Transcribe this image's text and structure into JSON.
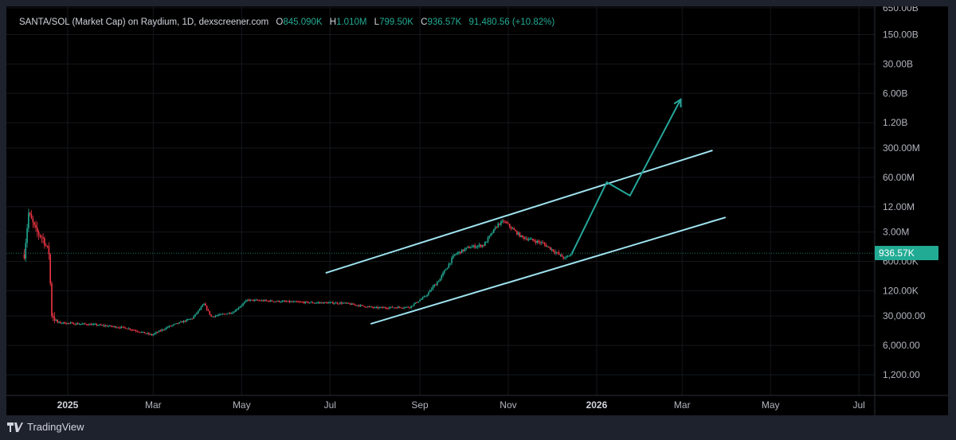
{
  "legend": {
    "title": "SANTA/SOL (Market Cap) on Raydium, 1D, dexscreener.com",
    "open_label": "O",
    "open": "845.090K",
    "high_label": "H",
    "high": "1.010M",
    "low_label": "L",
    "low": "799.50K",
    "close_label": "C",
    "close": "936.57K",
    "change": "91,480.56 (+10.82%)"
  },
  "branding": {
    "name": "TradingView",
    "icon": "tradingview-logo-icon"
  },
  "colors": {
    "up": "#22ab94",
    "down": "#f23645",
    "channel": "#9fe3f0",
    "projection": "#26a69a",
    "background": "#000000",
    "frame": "#1e222d"
  },
  "chart_data": {
    "type": "candlestick",
    "title": "SANTA/SOL (Market Cap) on Raydium, 1D, dexscreener.com",
    "y_scale": "log",
    "ylim": [
      1000,
      800000000000
    ],
    "xlim": [
      "2024-11-27",
      "2026-07-25"
    ],
    "grid": true,
    "y_ticks": [
      {
        "value": 650000000000,
        "label": "650.00B"
      },
      {
        "value": 150000000000,
        "label": "150.00B"
      },
      {
        "value": 30000000000,
        "label": "30.00B"
      },
      {
        "value": 6000000000,
        "label": "6.00B"
      },
      {
        "value": 1200000000,
        "label": "1.20B"
      },
      {
        "value": 300000000,
        "label": "300.00M"
      },
      {
        "value": 60000000,
        "label": "60.00M"
      },
      {
        "value": 12000000,
        "label": "12.00M"
      },
      {
        "value": 3000000,
        "label": "3.00M"
      },
      {
        "value": 600000,
        "label": "600.00K"
      },
      {
        "value": 120000,
        "label": "120.00K"
      },
      {
        "value": 30000,
        "label": "30,000.00"
      },
      {
        "value": 6000,
        "label": "6,000.00"
      },
      {
        "value": 1200,
        "label": "1,200.00"
      }
    ],
    "x_ticks": [
      {
        "date": "2025-01-01",
        "label": "2025",
        "bold": true
      },
      {
        "date": "2025-03-01",
        "label": "Mar"
      },
      {
        "date": "2025-05-01",
        "label": "May"
      },
      {
        "date": "2025-07-01",
        "label": "Jul"
      },
      {
        "date": "2025-09-01",
        "label": "Sep"
      },
      {
        "date": "2025-11-01",
        "label": "Nov"
      },
      {
        "date": "2026-01-01",
        "label": "2026",
        "bold": true
      },
      {
        "date": "2026-03-01",
        "label": "Mar"
      },
      {
        "date": "2026-05-01",
        "label": "May"
      },
      {
        "date": "2026-07-01",
        "label": "Jul"
      }
    ],
    "price_path": [
      [
        "2024-12-02",
        870000
      ],
      [
        "2024-12-05",
        8400000
      ],
      [
        "2024-12-10",
        3200000
      ],
      [
        "2024-12-15",
        2100000
      ],
      [
        "2024-12-19",
        950000
      ],
      [
        "2024-12-21",
        33000
      ],
      [
        "2024-12-25",
        21000
      ],
      [
        "2025-01-20",
        18600
      ],
      [
        "2025-02-10",
        15700
      ],
      [
        "2025-02-28",
        10600
      ],
      [
        "2025-03-12",
        17000
      ],
      [
        "2025-03-28",
        26500
      ],
      [
        "2025-04-05",
        58000
      ],
      [
        "2025-04-10",
        29000
      ],
      [
        "2025-04-25",
        37000
      ],
      [
        "2025-05-05",
        72000
      ],
      [
        "2025-06-15",
        63000
      ],
      [
        "2025-07-10",
        61000
      ],
      [
        "2025-08-01",
        47000
      ],
      [
        "2025-08-25",
        49000
      ],
      [
        "2025-09-05",
        90000
      ],
      [
        "2025-09-15",
        234000
      ],
      [
        "2025-09-25",
        870000
      ],
      [
        "2025-10-05",
        1300000
      ],
      [
        "2025-10-15",
        1470000
      ],
      [
        "2025-10-25",
        4600000
      ],
      [
        "2025-10-29",
        5400000
      ],
      [
        "2025-11-10",
        2300000
      ],
      [
        "2025-11-25",
        1600000
      ],
      [
        "2025-12-10",
        700000
      ],
      [
        "2025-12-15",
        936570
      ]
    ],
    "last_price": {
      "value": 936570,
      "label": "936.57K"
    },
    "drawings": {
      "channel_upper": [
        [
          "2025-06-28",
          318000
        ],
        [
          "2026-03-22",
          263000000
        ]
      ],
      "channel_lower": [
        [
          "2025-07-29",
          19500
        ],
        [
          "2026-03-31",
          6700000
        ]
      ],
      "projection_path": [
        [
          "2025-12-15",
          936570
        ],
        [
          "2026-01-08",
          46000000
        ],
        [
          "2026-01-24",
          22000000
        ],
        [
          "2026-02-28",
          4300000000
        ]
      ]
    }
  }
}
